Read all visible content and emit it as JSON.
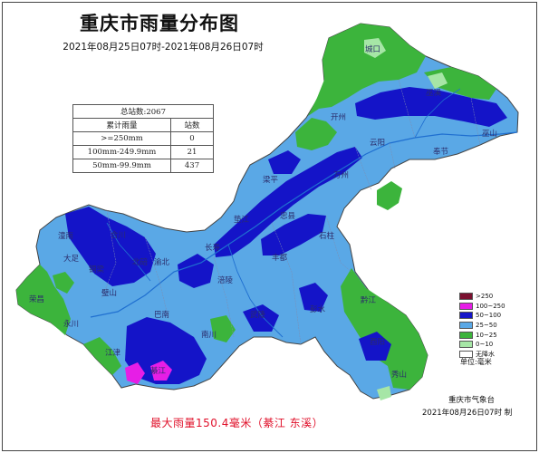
{
  "title": "重庆市雨量分布图",
  "subtitle": "2021年08月25日07时-2021年08月26日07时",
  "stats": {
    "total_label": "总站数:2067",
    "col_range": "累计雨量",
    "col_count": "站数",
    "rows": [
      {
        "range": ">=250mm",
        "count": "0"
      },
      {
        "range": "100mm-249.9mm",
        "count": "21"
      },
      {
        "range": "50mm-99.9mm",
        "count": "437"
      }
    ]
  },
  "legend": {
    "items": [
      {
        "label": ">250",
        "color": "#7a1030"
      },
      {
        "label": "100~250",
        "color": "#e61ee6"
      },
      {
        "label": "50~100",
        "color": "#1414c8"
      },
      {
        "label": "25~50",
        "color": "#5aa8e6"
      },
      {
        "label": "10~25",
        "color": "#3cb43c"
      },
      {
        "label": "0~10",
        "color": "#a6e6a6"
      },
      {
        "label": "无降水",
        "color": "#ffffff"
      }
    ],
    "unit": "单位:毫米"
  },
  "places": [
    "城口",
    "巫溪",
    "开州",
    "巫山",
    "云阳",
    "奉节",
    "梁平",
    "万州",
    "垫江",
    "忠县",
    "石柱",
    "潼南",
    "合川",
    "大足",
    "铜梁",
    "北碚",
    "渝北",
    "长寿",
    "荣昌",
    "永川",
    "璧山",
    "丰都",
    "涪陵",
    "巴南",
    "南川",
    "武隆",
    "彭水",
    "黔江",
    "綦江",
    "江津",
    "酉阳",
    "秀山"
  ],
  "max_rainfall": "最大雨量150.4毫米（綦江 东溪）",
  "agency": "重庆市气象台",
  "issued": "2021年08月26日07时 制"
}
